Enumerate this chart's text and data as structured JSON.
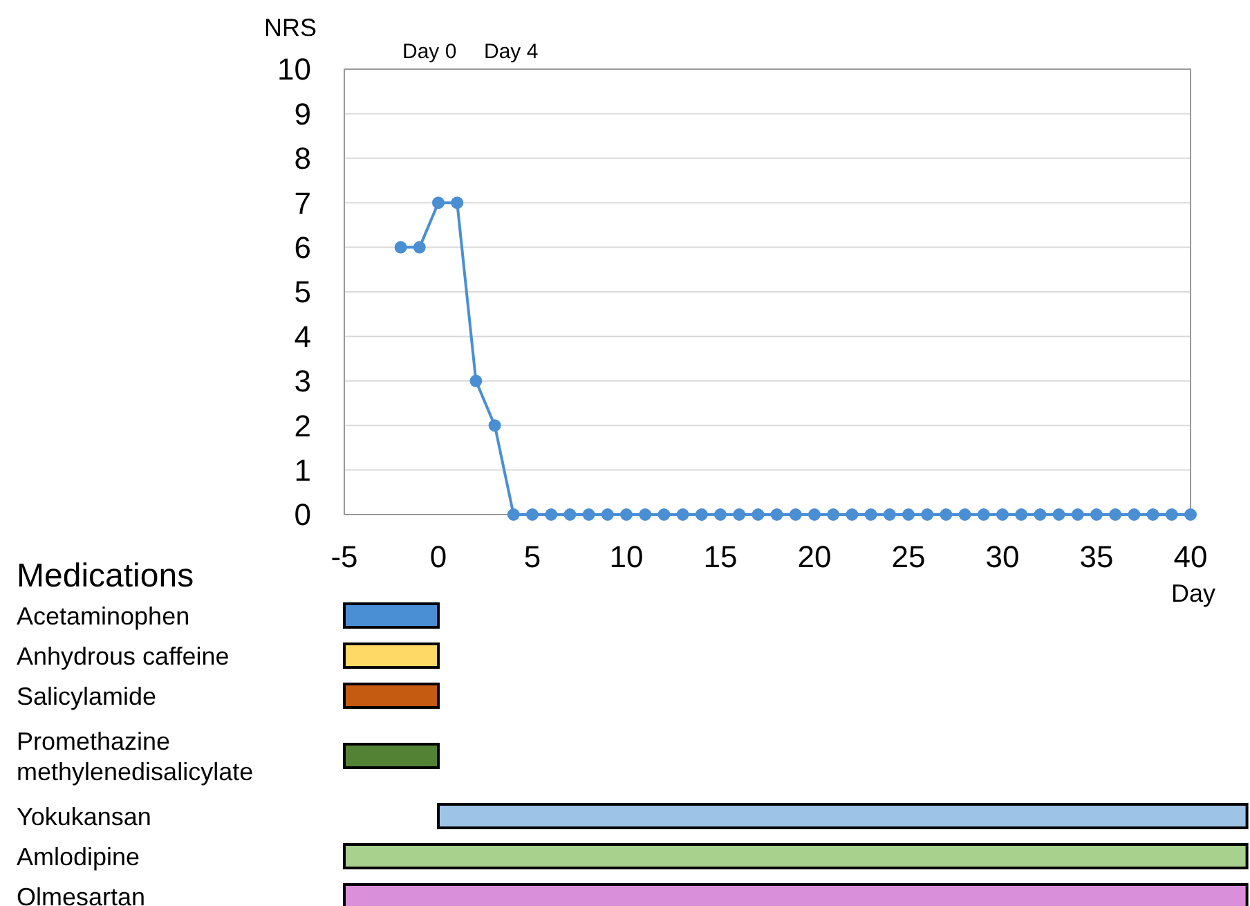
{
  "chart_data": [
    {
      "type": "line",
      "ylabel": "NRS",
      "xlabel": "Day",
      "annotations": [
        "Day 0",
        "Day 4"
      ],
      "x": [
        -2,
        -1,
        0,
        1,
        2,
        3,
        4,
        5,
        6,
        7,
        8,
        9,
        10,
        11,
        12,
        13,
        14,
        15,
        16,
        17,
        18,
        19,
        20,
        21,
        22,
        23,
        24,
        25,
        26,
        27,
        28,
        29,
        30,
        31,
        32,
        33,
        34,
        35,
        36,
        37,
        38,
        39,
        40
      ],
      "series": [
        {
          "color": "#4a8fd4",
          "values": [
            6,
            6,
            7,
            7,
            3,
            2,
            0,
            0,
            0,
            0,
            0,
            0,
            0,
            0,
            0,
            0,
            0,
            0,
            0,
            0,
            0,
            0,
            0,
            0,
            0,
            0,
            0,
            0,
            0,
            0,
            0,
            0,
            0,
            0,
            0,
            0,
            0,
            0,
            0,
            0,
            0,
            0,
            0
          ]
        }
      ],
      "xlim": [
        -5,
        40
      ],
      "xticks": [
        -5,
        0,
        5,
        10,
        15,
        20,
        25,
        30,
        35,
        40
      ],
      "ylim": [
        0,
        10
      ],
      "yticks": [
        0,
        1,
        2,
        3,
        4,
        5,
        6,
        7,
        8,
        9,
        10
      ],
      "grid": "y",
      "marker": "circle",
      "line_style": "solid"
    },
    {
      "type": "bar",
      "orientation": "horizontal",
      "title": "Medications",
      "categories": [
        "Acetaminophen",
        "Anhydrous caffeine",
        "Salicylamide",
        "Promethazine methylenedisalicylate",
        "Yokukansan",
        "Amlodipine",
        "Olmesartan"
      ],
      "base": [
        -5,
        -5,
        -5,
        -5,
        0,
        -5,
        -5
      ],
      "values": [
        5,
        5,
        5,
        5,
        43,
        48,
        48
      ],
      "colors": [
        "#4a8fd4",
        "#ffd966",
        "#c55a11",
        "#548235",
        "#9dc3e6",
        "#a9d18e",
        "#da8fda"
      ],
      "xlim": [
        -5,
        43
      ],
      "xticks": [
        -5,
        0,
        5,
        10,
        15,
        20,
        25,
        30,
        35,
        40
      ],
      "tick_labels": "y"
    }
  ]
}
